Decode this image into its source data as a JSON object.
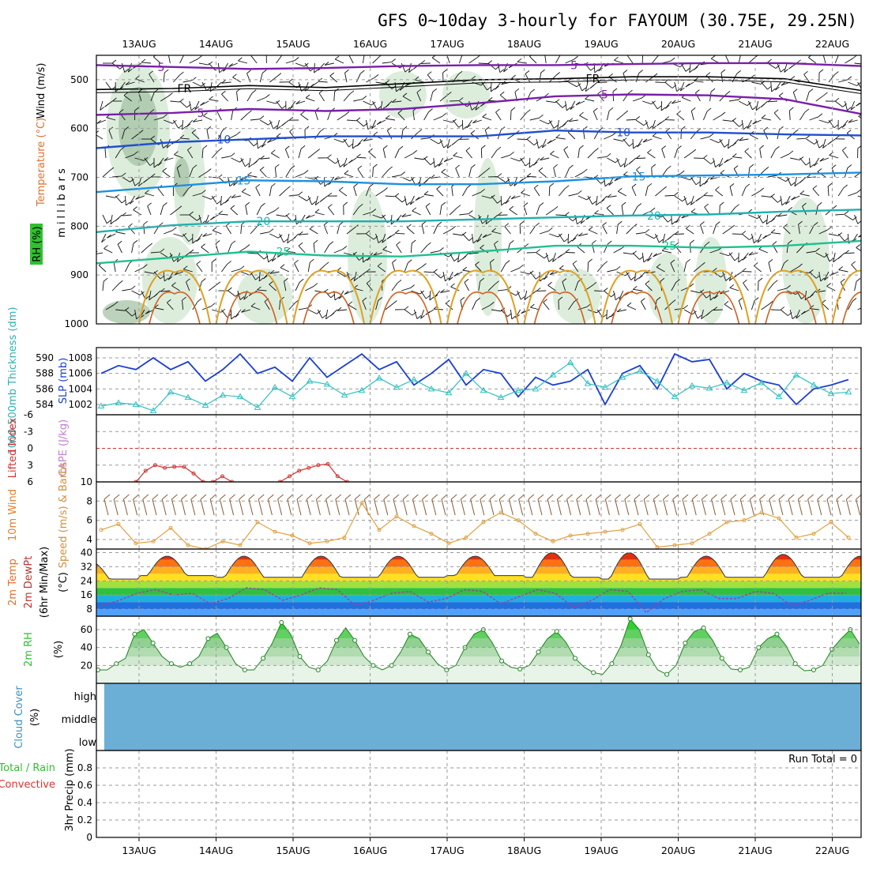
{
  "title": "GFS 0~10day 3-hourly for FAYOUM (30.75E, 29.25N)",
  "colors": {
    "frame": "#000000",
    "grid": "#9a9a9a",
    "wind_barb": "#111111",
    "temp_fr": "#000000",
    "temp_5": "#7a1fa8",
    "temp_10": "#1f4fd0",
    "temp_15": "#1f90e0",
    "temp_20": "#20b0b0",
    "temp_25": "#20c090",
    "temp_30": "#e0a020",
    "temp_35": "#d06020",
    "rh_fill": "#d6ead6",
    "rh_fill_dark": "#9fbf9f",
    "slp": "#1a3fd0",
    "thickness": "#30c0c0",
    "lifted_index": "#d03030",
    "wind_speed": "#e0a040",
    "wind_barb_10m": "#8a5a30",
    "dewpoint": "#a040a0",
    "rh2m": "#30c030",
    "cloud": "#6baed6"
  },
  "date_labels": [
    "13AUG",
    "14AUG",
    "15AUG",
    "16AUG",
    "17AUG",
    "18AUG",
    "19AUG",
    "20AUG",
    "21AUG",
    "22AUG"
  ],
  "chart_data": [
    {
      "type": "heatmap",
      "panel": "upper-air",
      "y_axis_label": "millibars",
      "y_axis_ticks": [
        "500",
        "600",
        "700",
        "800",
        "900",
        "1000"
      ],
      "ylim": [
        1000,
        450
      ],
      "legend": [
        "Wind (m/s)",
        "Temperature (°C)",
        "RH (%)"
      ],
      "contour_levels_temp": [
        "FR",
        "5",
        "10",
        "15",
        "20",
        "25"
      ],
      "contour_levels_rh": [
        "10",
        "30",
        "50"
      ],
      "temp_contours": [
        {
          "label": "5",
          "values": [
            470,
            474,
            478,
            476,
            472,
            470,
            470,
            468,
            466,
            466,
            472
          ]
        },
        {
          "label": "FR",
          "values": [
            520,
            518,
            512,
            516,
            508,
            500,
            498,
            494,
            494,
            498,
            522
          ]
        },
        {
          "label": "5",
          "values": [
            572,
            568,
            560,
            564,
            560,
            548,
            534,
            530,
            532,
            540,
            570
          ]
        },
        {
          "label": "10",
          "values": [
            640,
            628,
            622,
            616,
            616,
            616,
            604,
            608,
            608,
            612,
            614
          ]
        },
        {
          "label": "15",
          "values": [
            730,
            718,
            706,
            708,
            714,
            714,
            708,
            698,
            696,
            694,
            690
          ]
        },
        {
          "label": "20",
          "values": [
            812,
            798,
            790,
            790,
            790,
            786,
            782,
            778,
            776,
            770,
            766
          ]
        },
        {
          "label": "25",
          "values": [
            876,
            864,
            852,
            860,
            862,
            852,
            840,
            840,
            844,
            840,
            830
          ]
        }
      ]
    },
    {
      "type": "line",
      "panel": "slp-thickness",
      "legend": [
        "1000-500mb Thickness (dm)",
        "SLP (mb)"
      ],
      "slp_ticks": [
        "1002",
        "1004",
        "1006",
        "1008"
      ],
      "thickness_ticks": [
        "584",
        "586",
        "588",
        "590"
      ],
      "x_hours_step": 6,
      "series": [
        {
          "name": "SLP (mb)",
          "values": [
            1006.0,
            1007.0,
            1006.5,
            1008.0,
            1006.5,
            1007.5,
            1005.0,
            1006.5,
            1008.5,
            1006.0,
            1006.8,
            1005.0,
            1008.0,
            1005.5,
            1007.0,
            1008.5,
            1006.5,
            1007.5,
            1004.5,
            1006.0,
            1007.8,
            1004.5,
            1006.5,
            1006.0,
            1003.0,
            1005.5,
            1004.5,
            1005.0,
            1006.5,
            1002.0,
            1006.0,
            1007.0,
            1004.0,
            1008.5,
            1007.5,
            1007.8,
            1004.0,
            1006.0,
            1005.0,
            1004.5,
            1002.0,
            1004.0,
            1004.5,
            1005.2
          ]
        },
        {
          "name": "1000-500mb Thickness (dm)",
          "values": [
            583.8,
            584.2,
            584.0,
            583.2,
            585.6,
            584.9,
            583.9,
            585.2,
            585.0,
            583.6,
            586.2,
            585.0,
            587.0,
            586.6,
            585.2,
            585.8,
            587.4,
            586.2,
            587.2,
            586.0,
            585.5,
            588.0,
            585.8,
            584.9,
            585.8,
            586.0,
            587.8,
            589.4,
            586.7,
            586.2,
            587.5,
            588.3,
            587.0,
            585.0,
            586.4,
            586.1,
            586.8,
            585.8,
            586.8,
            585.0,
            587.8,
            586.5,
            585.4,
            585.6
          ]
        }
      ]
    },
    {
      "type": "line",
      "panel": "lifted-index-cape",
      "legend": [
        "Lifted Index",
        "CAPE (J/kg)"
      ],
      "y_ticks": [
        "-6",
        "-3",
        "0",
        "3",
        "6"
      ],
      "ylim": [
        -6,
        6
      ],
      "series": [
        {
          "name": "Lifted Index",
          "x_hours": [
            3,
            6,
            9,
            12,
            15,
            18,
            21,
            24,
            27,
            30,
            33,
            48,
            51,
            54,
            57,
            60,
            63,
            66,
            69
          ],
          "values": [
            6.0,
            4.0,
            3.0,
            3.5,
            3.3,
            3.3,
            4.5,
            6.0,
            6.0,
            5.0,
            6.0,
            6.0,
            5.0,
            4.0,
            3.5,
            3.0,
            2.8,
            5.0,
            6.0
          ]
        }
      ]
    },
    {
      "type": "line",
      "panel": "10m-wind",
      "legend": [
        "10m Wind",
        "Speed (m/s) & Barbs"
      ],
      "y_ticks": [
        "4",
        "6",
        "8",
        "10"
      ],
      "ylim": [
        3,
        10
      ],
      "series": [
        {
          "name": "Speed (m/s)",
          "values": [
            5.0,
            5.6,
            3.6,
            3.8,
            5.2,
            3.4,
            3.0,
            3.8,
            3.4,
            5.8,
            4.8,
            4.4,
            3.6,
            3.8,
            4.2,
            7.8,
            5.0,
            6.4,
            5.4,
            4.6,
            3.6,
            4.2,
            5.8,
            6.8,
            6.0,
            4.6,
            3.8,
            4.4,
            4.6,
            4.8,
            5.0,
            5.6,
            3.2,
            3.4,
            3.6,
            4.6,
            5.8,
            6.0,
            6.8,
            6.2,
            4.2,
            4.6,
            5.8,
            4.2
          ]
        }
      ]
    },
    {
      "type": "area",
      "panel": "2m-temp",
      "legend": [
        "2m Temp",
        "2m DewPt",
        "(6hr Min/Max)"
      ],
      "y_ticks": [
        "8",
        "16",
        "24",
        "32",
        "40"
      ],
      "ylim": [
        4,
        42
      ],
      "series": [
        {
          "name": "2m Temp",
          "min": [
            25,
            27,
            26,
            26,
            26,
            27,
            26,
            25,
            26,
            26,
            26
          ],
          "max": [
            35,
            38,
            38,
            38,
            38,
            38,
            40,
            40,
            38,
            39,
            38
          ]
        },
        {
          "name": "2m DewPt",
          "values": [
            10,
            13,
            17,
            19,
            16,
            17,
            11,
            14,
            20,
            19,
            13,
            16,
            20,
            19,
            10,
            13,
            17,
            18,
            12,
            14,
            19,
            18,
            11,
            15,
            19,
            17,
            9,
            13,
            19,
            18,
            6,
            14,
            18,
            19,
            14,
            14,
            18,
            17,
            10,
            13,
            17,
            17
          ]
        }
      ]
    },
    {
      "type": "area",
      "panel": "2m-rh",
      "legend": [
        "2m RH",
        "(%)"
      ],
      "y_ticks": [
        "20",
        "40",
        "60"
      ],
      "ylim": [
        0,
        75
      ],
      "series": [
        {
          "name": "2m RH",
          "values": [
            15,
            15,
            22,
            28,
            55,
            60,
            45,
            30,
            22,
            18,
            22,
            30,
            50,
            56,
            40,
            22,
            15,
            15,
            28,
            45,
            68,
            55,
            30,
            18,
            15,
            25,
            48,
            62,
            48,
            30,
            20,
            15,
            20,
            35,
            55,
            50,
            35,
            22,
            15,
            20,
            40,
            55,
            60,
            45,
            25,
            18,
            16,
            20,
            35,
            50,
            58,
            46,
            28,
            18,
            12,
            10,
            22,
            42,
            72,
            60,
            32,
            15,
            10,
            20,
            45,
            58,
            62,
            48,
            28,
            16,
            15,
            18,
            40,
            50,
            55,
            42,
            22,
            14,
            15,
            20,
            38,
            50,
            60,
            44
          ]
        }
      ]
    },
    {
      "type": "area",
      "panel": "cloud-cover",
      "legend": [
        "Cloud Cover",
        "(%)"
      ],
      "levels": [
        "high",
        "middle",
        "low"
      ]
    },
    {
      "type": "bar",
      "panel": "precip",
      "legend": [
        "Total / Rain",
        "Convective",
        "3hr Precip (mm)"
      ],
      "y_ticks": [
        "0",
        "0.2",
        "0.4",
        "0.6",
        "0.8"
      ],
      "ylim": [
        0,
        1.0
      ],
      "run_total": "Run Total = 0",
      "values": []
    }
  ]
}
